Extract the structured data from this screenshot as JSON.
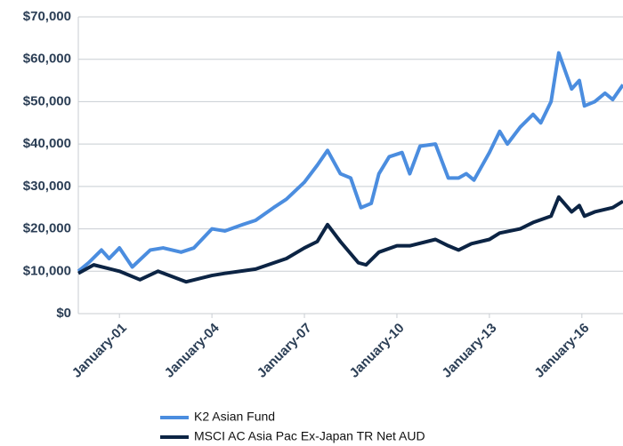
{
  "chart_data": {
    "type": "line",
    "xlim": [
      "1999-09",
      "2017-05"
    ],
    "xticks": [
      {
        "value": "2001-01",
        "label": "January-01"
      },
      {
        "value": "2004-01",
        "label": "January-04"
      },
      {
        "value": "2007-01",
        "label": "January-07"
      },
      {
        "value": "2010-01",
        "label": "January-10"
      },
      {
        "value": "2013-01",
        "label": "January-13"
      },
      {
        "value": "2016-01",
        "label": "January-16"
      }
    ],
    "ylim": [
      0,
      70000
    ],
    "yticks": [
      {
        "value": 0,
        "label": "$0"
      },
      {
        "value": 10000,
        "label": "$10,000"
      },
      {
        "value": 20000,
        "label": "$20,000"
      },
      {
        "value": 30000,
        "label": "$30,000"
      },
      {
        "value": 40000,
        "label": "$40,000"
      },
      {
        "value": 50000,
        "label": "$50,000"
      },
      {
        "value": 60000,
        "label": "$60,000"
      },
      {
        "value": 70000,
        "label": "$70,000"
      }
    ],
    "grid": true,
    "legend": "bottom",
    "series": [
      {
        "name": "K2 Asian Fund",
        "color": "#4b8ddf",
        "x": [
          "1999-09",
          "2000-01",
          "2000-06",
          "2000-09",
          "2001-01",
          "2001-06",
          "2002-01",
          "2002-06",
          "2003-01",
          "2003-06",
          "2004-01",
          "2004-06",
          "2005-01",
          "2005-06",
          "2006-01",
          "2006-06",
          "2007-01",
          "2007-06",
          "2007-10",
          "2008-03",
          "2008-07",
          "2008-11",
          "2009-03",
          "2009-06",
          "2009-10",
          "2010-03",
          "2010-06",
          "2010-10",
          "2011-04",
          "2011-09",
          "2012-01",
          "2012-04",
          "2012-07",
          "2013-01",
          "2013-05",
          "2013-08",
          "2014-01",
          "2014-06",
          "2014-09",
          "2015-01",
          "2015-04",
          "2015-09",
          "2015-12",
          "2016-02",
          "2016-06",
          "2016-10",
          "2017-01",
          "2017-05"
        ],
        "values": [
          10000,
          12000,
          15000,
          13000,
          15500,
          11000,
          15000,
          15500,
          14500,
          15500,
          20000,
          19500,
          21000,
          22000,
          25000,
          27000,
          31000,
          35000,
          38500,
          33000,
          32000,
          25000,
          26000,
          33000,
          37000,
          38000,
          33000,
          39500,
          40000,
          32000,
          32000,
          33000,
          31500,
          38000,
          43000,
          40000,
          44000,
          47000,
          45000,
          50000,
          61500,
          53000,
          55000,
          49000,
          50000,
          52000,
          50500,
          54000
        ]
      },
      {
        "name": "MSCI AC Asia Pac Ex-Japan TR Net AUD",
        "color": "#0c2444",
        "x": [
          "1999-09",
          "2000-03",
          "2001-01",
          "2001-09",
          "2002-04",
          "2003-03",
          "2004-01",
          "2004-06",
          "2005-06",
          "2006-06",
          "2007-01",
          "2007-06",
          "2007-10",
          "2008-03",
          "2008-10",
          "2009-01",
          "2009-06",
          "2010-01",
          "2010-06",
          "2011-04",
          "2011-09",
          "2012-01",
          "2012-06",
          "2013-01",
          "2013-05",
          "2014-01",
          "2014-06",
          "2015-01",
          "2015-04",
          "2015-09",
          "2015-12",
          "2016-02",
          "2016-06",
          "2017-01",
          "2017-05"
        ],
        "values": [
          9500,
          11500,
          10000,
          8000,
          10000,
          7500,
          9000,
          9500,
          10500,
          13000,
          15500,
          17000,
          21000,
          17000,
          12000,
          11500,
          14500,
          16000,
          16000,
          17500,
          16000,
          15000,
          16500,
          17500,
          19000,
          20000,
          21500,
          23000,
          27500,
          24000,
          25500,
          23000,
          24000,
          25000,
          26500
        ]
      }
    ]
  }
}
